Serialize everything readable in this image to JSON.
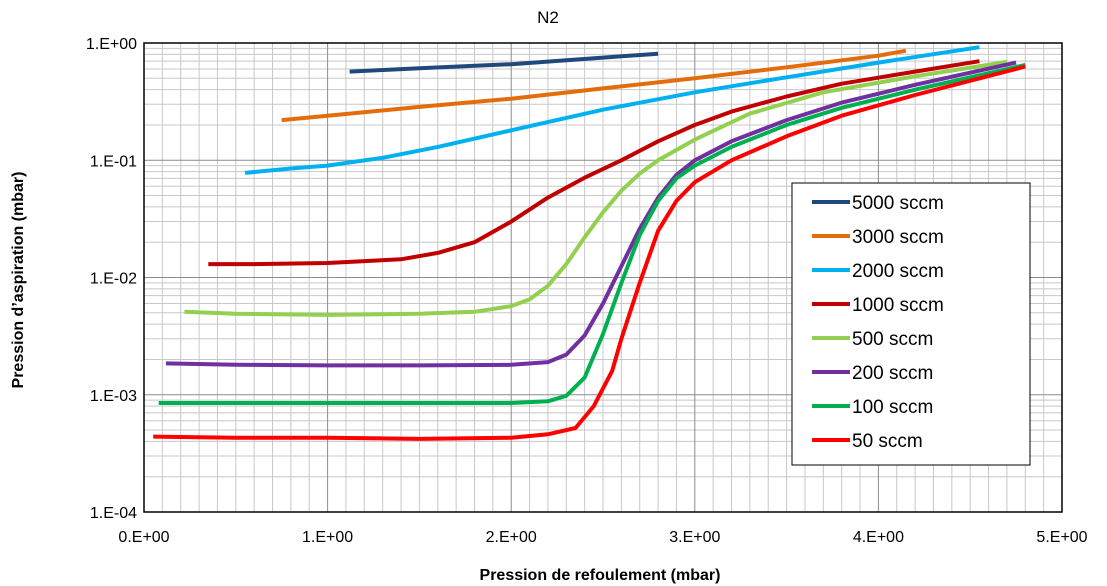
{
  "chart_data": {
    "type": "line",
    "title": "N2",
    "xlabel": "Pression de refoulement (mbar)",
    "ylabel": "Pression d’aspiration (mbar)",
    "xlim": [
      0,
      5
    ],
    "ylim": [
      0.0001,
      1
    ],
    "y_scale": "log",
    "grid": true,
    "legend_position": "right",
    "x_ticks": [
      0,
      1,
      2,
      3,
      4,
      5
    ],
    "x_tick_labels": [
      "0.E+00",
      "1.E+00",
      "2.E+00",
      "3.E+00",
      "4.E+00",
      "5.E+00"
    ],
    "y_ticks": [
      0.0001,
      0.001,
      0.01,
      0.1,
      1
    ],
    "y_tick_labels": [
      "1.E-04",
      "1.E-03",
      "1.E-02",
      "1.E-01",
      "1.E+00"
    ],
    "series": [
      {
        "name": "5000 sccm",
        "color": "#1f497d",
        "x": [
          1.12,
          1.5,
          2.0,
          2.5,
          2.8
        ],
        "y": [
          0.57,
          0.61,
          0.66,
          0.75,
          0.81
        ]
      },
      {
        "name": "3000 sccm",
        "color": "#e46c0a",
        "x": [
          0.75,
          1.0,
          1.5,
          2.0,
          2.5,
          3.0,
          3.5,
          4.0,
          4.15
        ],
        "y": [
          0.22,
          0.24,
          0.285,
          0.335,
          0.41,
          0.5,
          0.62,
          0.78,
          0.86
        ]
      },
      {
        "name": "2000 sccm",
        "color": "#00b0f0",
        "x": [
          0.55,
          0.8,
          1.0,
          1.3,
          1.6,
          2.0,
          2.5,
          3.0,
          3.5,
          4.0,
          4.55
        ],
        "y": [
          0.078,
          0.085,
          0.09,
          0.105,
          0.13,
          0.18,
          0.27,
          0.38,
          0.51,
          0.68,
          0.92
        ]
      },
      {
        "name": "1000 sccm",
        "color": "#c00000",
        "x": [
          0.35,
          0.6,
          1.0,
          1.4,
          1.6,
          1.8,
          2.0,
          2.2,
          2.4,
          2.6,
          2.8,
          3.0,
          3.2,
          3.5,
          3.8,
          4.2,
          4.55
        ],
        "y": [
          0.013,
          0.013,
          0.0133,
          0.0143,
          0.0162,
          0.02,
          0.03,
          0.048,
          0.071,
          0.1,
          0.145,
          0.2,
          0.26,
          0.35,
          0.45,
          0.57,
          0.7
        ]
      },
      {
        "name": "500 sccm",
        "color": "#92d050",
        "x": [
          0.22,
          0.5,
          1.0,
          1.5,
          1.8,
          2.0,
          2.1,
          2.2,
          2.3,
          2.4,
          2.5,
          2.6,
          2.7,
          2.8,
          3.0,
          3.3,
          3.7,
          4.2,
          4.7
        ],
        "y": [
          0.0051,
          0.0049,
          0.0048,
          0.0049,
          0.0051,
          0.0057,
          0.0065,
          0.0085,
          0.013,
          0.022,
          0.036,
          0.055,
          0.077,
          0.1,
          0.15,
          0.25,
          0.38,
          0.52,
          0.69
        ]
      },
      {
        "name": "200 sccm",
        "color": "#7030a0",
        "x": [
          0.12,
          0.5,
          1.0,
          1.5,
          2.0,
          2.2,
          2.3,
          2.4,
          2.5,
          2.6,
          2.7,
          2.8,
          2.9,
          3.0,
          3.2,
          3.5,
          3.8,
          4.2,
          4.75
        ],
        "y": [
          0.00185,
          0.0018,
          0.00178,
          0.00178,
          0.0018,
          0.0019,
          0.0022,
          0.0032,
          0.006,
          0.0125,
          0.026,
          0.048,
          0.075,
          0.1,
          0.145,
          0.22,
          0.31,
          0.44,
          0.68
        ]
      },
      {
        "name": "100 sccm",
        "color": "#00b050",
        "x": [
          0.08,
          0.5,
          1.0,
          1.5,
          2.0,
          2.2,
          2.3,
          2.4,
          2.5,
          2.6,
          2.7,
          2.8,
          2.9,
          3.0,
          3.2,
          3.5,
          3.8,
          4.2,
          4.8
        ],
        "y": [
          0.00085,
          0.00085,
          0.00085,
          0.00085,
          0.00085,
          0.00088,
          0.00098,
          0.0014,
          0.0033,
          0.009,
          0.023,
          0.045,
          0.07,
          0.09,
          0.13,
          0.2,
          0.28,
          0.4,
          0.65
        ]
      },
      {
        "name": "50 sccm",
        "color": "#ff0000",
        "x": [
          0.05,
          0.5,
          1.0,
          1.5,
          2.0,
          2.2,
          2.35,
          2.45,
          2.55,
          2.6,
          2.7,
          2.8,
          2.9,
          3.0,
          3.2,
          3.5,
          3.8,
          4.2,
          4.8
        ],
        "y": [
          0.00044,
          0.00043,
          0.00043,
          0.00042,
          0.00043,
          0.00046,
          0.00052,
          0.0008,
          0.0016,
          0.003,
          0.009,
          0.025,
          0.045,
          0.065,
          0.1,
          0.16,
          0.24,
          0.36,
          0.63
        ]
      }
    ]
  }
}
